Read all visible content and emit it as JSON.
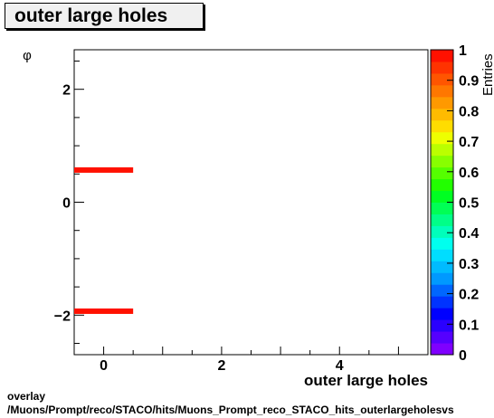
{
  "title": "outer large holes",
  "footer": {
    "line1": "overlay",
    "line2": "/Muons/Prompt/reco/STACO/hits/Muons_Prompt_reco_STACO_hits_outerlargeholesvs"
  },
  "chart_data": {
    "type": "heatmap",
    "title": "outer large holes",
    "xlabel": "outer large holes",
    "ylabel": "φ",
    "xlim": [
      -0.5,
      5.5
    ],
    "ylim": [
      -2.7,
      2.7
    ],
    "x_ticks": [
      0,
      2,
      4
    ],
    "y_ticks": [
      -2,
      0,
      2
    ],
    "cells": [
      {
        "x": [
          -0.5,
          0.5
        ],
        "y": 0.57,
        "value": 1
      },
      {
        "x": [
          -0.5,
          0.5
        ],
        "y": -1.93,
        "value": 1
      }
    ],
    "colorbar": {
      "label": "Entries",
      "range": [
        0,
        1
      ],
      "ticks": [
        "0",
        "0.1",
        "0.2",
        "0.3",
        "0.4",
        "0.5",
        "0.6",
        "0.7",
        "0.8",
        "0.9",
        "1"
      ],
      "palette": [
        "#7f00ff",
        "#5500ff",
        "#2a00ff",
        "#0000ff",
        "#0033ff",
        "#0066ff",
        "#0099ff",
        "#00bbff",
        "#00ddff",
        "#00ffee",
        "#00ffbb",
        "#00ff88",
        "#00ff55",
        "#00ff22",
        "#22ff00",
        "#55ff00",
        "#88ff00",
        "#bbff00",
        "#eeff00",
        "#ffdd00",
        "#ffbb00",
        "#ff9900",
        "#ff7700",
        "#ff5500",
        "#ff3300",
        "#ff1100"
      ]
    },
    "grid": false
  }
}
